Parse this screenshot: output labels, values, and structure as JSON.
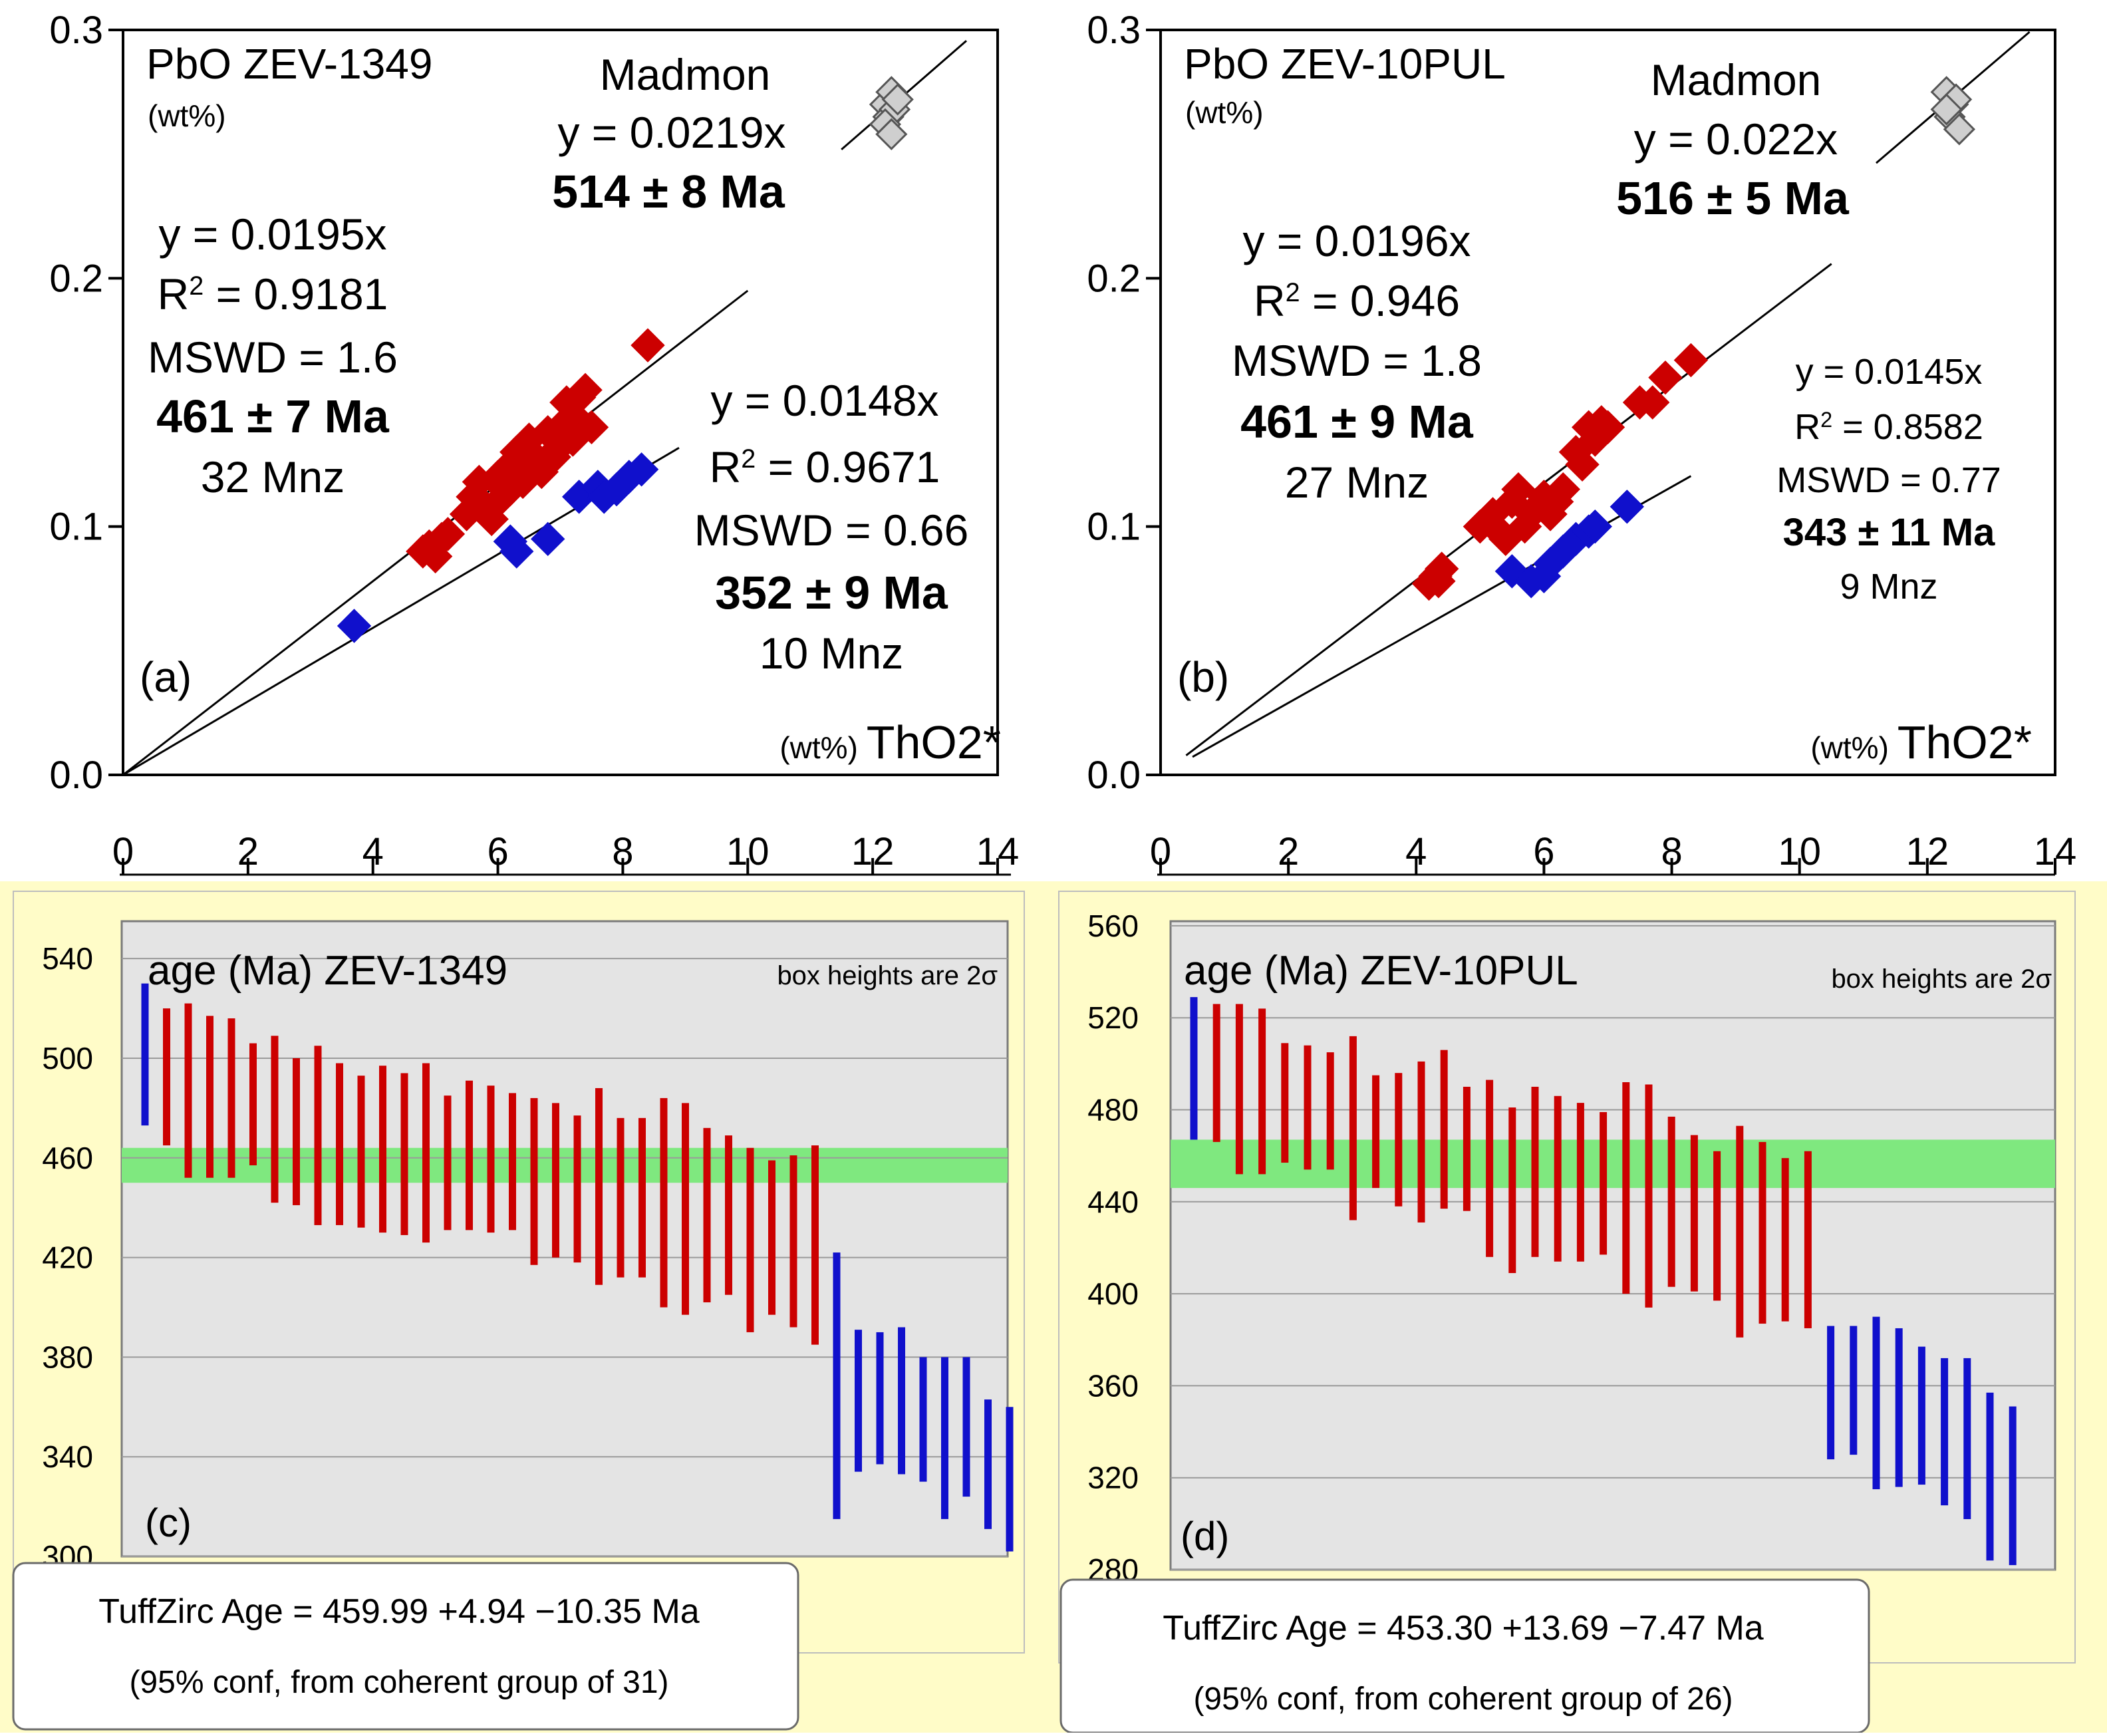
{
  "colors": {
    "red": "#cc0000",
    "blue": "#1010cc",
    "green": "#7fe87f",
    "grey_marker": "#cfcfcf",
    "yellow_bg": "#fffcc8",
    "panel_grey": "#e4e4e4",
    "grid": "#9a9a9a"
  },
  "chart_data": [
    {
      "id": "a",
      "type": "scatter",
      "panel_label": "(a)",
      "title": "PbO",
      "sample": "ZEV-1349",
      "ylabel_unit": "(wt%)",
      "xlabel_unit": "(wt%)",
      "xlabel": "ThO2*",
      "xlim": [
        0,
        14
      ],
      "ylim": [
        0,
        0.3
      ],
      "xticks": [
        "0",
        "2",
        "4",
        "6",
        "8",
        "10",
        "12",
        "14"
      ],
      "yticks": [
        "0.0",
        "0.1",
        "0.2",
        "0.3"
      ],
      "lines": [
        {
          "name": "madmon",
          "slope": 0.0219,
          "x": [
            11.5,
            13.5
          ]
        },
        {
          "name": "red",
          "slope": 0.0195,
          "x": [
            0,
            10
          ]
        },
        {
          "name": "blue",
          "slope": 0.0148,
          "x": [
            0,
            8.9
          ]
        }
      ],
      "series": [
        {
          "name": "Madmon",
          "color": "grey",
          "points": [
            [
              12.2,
              0.27
            ],
            [
              12.3,
              0.275
            ],
            [
              12.25,
              0.265
            ],
            [
              12.35,
              0.268
            ],
            [
              12.2,
              0.262
            ],
            [
              12.4,
              0.272
            ],
            [
              12.3,
              0.258
            ]
          ]
        },
        {
          "name": "red",
          "color": "red",
          "points": [
            [
              4.8,
              0.09
            ],
            [
              4.9,
              0.092
            ],
            [
              5.0,
              0.088
            ],
            [
              5.1,
              0.095
            ],
            [
              5.2,
              0.097
            ],
            [
              5.6,
              0.112
            ],
            [
              5.7,
              0.118
            ],
            [
              5.8,
              0.108
            ],
            [
              5.9,
              0.103
            ],
            [
              6.0,
              0.12
            ],
            [
              6.1,
              0.115
            ],
            [
              6.2,
              0.125
            ],
            [
              6.3,
              0.13
            ],
            [
              6.4,
              0.118
            ],
            [
              6.5,
              0.135
            ],
            [
              6.6,
              0.128
            ],
            [
              6.7,
              0.122
            ],
            [
              6.8,
              0.138
            ],
            [
              6.9,
              0.13
            ],
            [
              7.0,
              0.14
            ],
            [
              7.1,
              0.15
            ],
            [
              7.2,
              0.145
            ],
            [
              7.3,
              0.152
            ],
            [
              7.4,
              0.155
            ],
            [
              7.5,
              0.14
            ],
            [
              6.5,
              0.125
            ],
            [
              6.2,
              0.115
            ],
            [
              6.0,
              0.11
            ],
            [
              5.5,
              0.105
            ],
            [
              7.2,
              0.135
            ],
            [
              6.9,
              0.128
            ],
            [
              8.4,
              0.173
            ]
          ]
        },
        {
          "name": "blue",
          "color": "blue",
          "points": [
            [
              3.7,
              0.06
            ],
            [
              6.2,
              0.094
            ],
            [
              6.3,
              0.09
            ],
            [
              6.8,
              0.095
            ],
            [
              7.3,
              0.112
            ],
            [
              7.6,
              0.116
            ],
            [
              7.7,
              0.112
            ],
            [
              7.9,
              0.115
            ],
            [
              8.1,
              0.12
            ],
            [
              8.3,
              0.123
            ]
          ]
        }
      ],
      "annotations": {
        "madmon_name": "Madmon",
        "madmon_eq": "y = 0.0219x",
        "madmon_age": "514  ±  8 Ma",
        "red_eq": "y = 0.0195x",
        "red_r2_label": "R",
        "red_r2_value": " = 0.9181",
        "red_mswd": "MSWD = 1.6",
        "red_age": "461  ±  7 Ma",
        "red_n": "32 Mnz",
        "blue_eq": "y = 0.0148x",
        "blue_r2_label": "R",
        "blue_r2_value": " = 0.9671",
        "blue_mswd": "MSWD = 0.66",
        "blue_age": "352  ±  9 Ma",
        "blue_n": "10 Mnz"
      }
    },
    {
      "id": "b",
      "type": "scatter",
      "panel_label": "(b)",
      "title": "PbO",
      "sample": "ZEV-10PUL",
      "ylabel_unit": "(wt%)",
      "xlabel_unit": "(wt%)",
      "xlabel": "ThO2*",
      "xlim": [
        0,
        14
      ],
      "ylim": [
        0,
        0.3
      ],
      "xticks": [
        "0",
        "2",
        "4",
        "6",
        "8",
        "10",
        "12",
        "14"
      ],
      "yticks": [
        "0.0",
        "0.1",
        "0.2",
        "0.3"
      ],
      "lines": [
        {
          "name": "madmon",
          "slope": 0.022,
          "x": [
            11.2,
            13.6
          ]
        },
        {
          "name": "red",
          "slope": 0.0196,
          "x": [
            0.4,
            10.5
          ]
        },
        {
          "name": "blue",
          "slope": 0.0145,
          "x": [
            0.5,
            8.3
          ]
        }
      ],
      "series": [
        {
          "name": "Madmon",
          "color": "grey",
          "points": [
            [
              12.3,
              0.275
            ],
            [
              12.4,
              0.27
            ],
            [
              12.35,
              0.265
            ],
            [
              12.45,
              0.272
            ],
            [
              12.3,
              0.268
            ],
            [
              12.5,
              0.26
            ]
          ]
        },
        {
          "name": "red",
          "color": "red",
          "points": [
            [
              4.2,
              0.077
            ],
            [
              4.3,
              0.08
            ],
            [
              4.4,
              0.083
            ],
            [
              4.35,
              0.078
            ],
            [
              5.0,
              0.1
            ],
            [
              5.2,
              0.105
            ],
            [
              5.3,
              0.098
            ],
            [
              5.4,
              0.095
            ],
            [
              5.5,
              0.11
            ],
            [
              5.6,
              0.115
            ],
            [
              5.7,
              0.1
            ],
            [
              5.8,
              0.105
            ],
            [
              5.9,
              0.108
            ],
            [
              6.0,
              0.112
            ],
            [
              6.1,
              0.105
            ],
            [
              6.2,
              0.11
            ],
            [
              6.3,
              0.115
            ],
            [
              6.5,
              0.13
            ],
            [
              6.6,
              0.125
            ],
            [
              6.7,
              0.14
            ],
            [
              6.8,
              0.135
            ],
            [
              6.9,
              0.142
            ],
            [
              7.0,
              0.14
            ],
            [
              7.5,
              0.15
            ],
            [
              7.7,
              0.15
            ],
            [
              7.9,
              0.16
            ],
            [
              8.3,
              0.167
            ]
          ]
        },
        {
          "name": "blue",
          "color": "blue",
          "points": [
            [
              5.5,
              0.082
            ],
            [
              5.8,
              0.078
            ],
            [
              6.0,
              0.08
            ],
            [
              6.1,
              0.085
            ],
            [
              6.3,
              0.09
            ],
            [
              6.5,
              0.095
            ],
            [
              6.7,
              0.098
            ],
            [
              6.8,
              0.1
            ],
            [
              7.3,
              0.108
            ]
          ]
        }
      ],
      "annotations": {
        "madmon_name": "Madmon",
        "madmon_eq": "y = 0.022x",
        "madmon_age": "516  ±  5 Ma",
        "red_eq": "y = 0.0196x",
        "red_r2_label": "R",
        "red_r2_value": " = 0.946",
        "red_mswd": "MSWD = 1.8",
        "red_age": "461  ±  9 Ma",
        "red_n": "27 Mnz",
        "blue_eq": "y = 0.0145x",
        "blue_r2_label": "R",
        "blue_r2_value": " = 0.8582",
        "blue_mswd": "MSWD = 0.77",
        "blue_age": "343  ± 11 Ma",
        "blue_n": "9 Mnz"
      }
    },
    {
      "id": "c",
      "type": "bar",
      "subtype": "error-bar ranked ages",
      "panel_label": "(c)",
      "title": "age (Ma)",
      "sample": "ZEV-1349",
      "note": "box heights are 2σ",
      "ylim": [
        300,
        555
      ],
      "yticks": [
        "540",
        "500",
        "460",
        "420",
        "380",
        "340",
        "300"
      ],
      "band": [
        450,
        464
      ],
      "bars": [
        {
          "color": "blue",
          "low": 473,
          "high": 530
        },
        {
          "color": "red",
          "low": 465,
          "high": 520
        },
        {
          "color": "red",
          "low": 452,
          "high": 522
        },
        {
          "color": "red",
          "low": 452,
          "high": 517
        },
        {
          "color": "red",
          "low": 452,
          "high": 516
        },
        {
          "color": "red",
          "low": 457,
          "high": 506
        },
        {
          "color": "red",
          "low": 442,
          "high": 509
        },
        {
          "color": "red",
          "low": 441,
          "high": 500
        },
        {
          "color": "red",
          "low": 433,
          "high": 505
        },
        {
          "color": "red",
          "low": 433,
          "high": 498
        },
        {
          "color": "red",
          "low": 432,
          "high": 493
        },
        {
          "color": "red",
          "low": 430,
          "high": 497
        },
        {
          "color": "red",
          "low": 429,
          "high": 494
        },
        {
          "color": "red",
          "low": 426,
          "high": 498
        },
        {
          "color": "red",
          "low": 431,
          "high": 485
        },
        {
          "color": "red",
          "low": 431,
          "high": 491
        },
        {
          "color": "red",
          "low": 430,
          "high": 489
        },
        {
          "color": "red",
          "low": 431,
          "high": 486
        },
        {
          "color": "red",
          "low": 417,
          "high": 484
        },
        {
          "color": "red",
          "low": 420,
          "high": 482
        },
        {
          "color": "red",
          "low": 418,
          "high": 477
        },
        {
          "color": "red",
          "low": 409,
          "high": 488
        },
        {
          "color": "red",
          "low": 412,
          "high": 476
        },
        {
          "color": "red",
          "low": 412,
          "high": 476
        },
        {
          "color": "red",
          "low": 400,
          "high": 484
        },
        {
          "color": "red",
          "low": 397,
          "high": 482
        },
        {
          "color": "red",
          "low": 402,
          "high": 472
        },
        {
          "color": "red",
          "low": 405,
          "high": 469
        },
        {
          "color": "red",
          "low": 390,
          "high": 464
        },
        {
          "color": "red",
          "low": 397,
          "high": 459
        },
        {
          "color": "red",
          "low": 392,
          "high": 461
        },
        {
          "color": "red",
          "low": 385,
          "high": 465
        },
        {
          "color": "blue",
          "low": 315,
          "high": 422
        },
        {
          "color": "blue",
          "low": 334,
          "high": 391
        },
        {
          "color": "blue",
          "low": 337,
          "high": 390
        },
        {
          "color": "blue",
          "low": 333,
          "high": 392
        },
        {
          "color": "blue",
          "low": 330,
          "high": 380
        },
        {
          "color": "blue",
          "low": 315,
          "high": 380
        },
        {
          "color": "blue",
          "low": 324,
          "high": 380
        },
        {
          "color": "blue",
          "low": 311,
          "high": 363
        },
        {
          "color": "blue",
          "low": 302,
          "high": 360
        }
      ],
      "result_line1": "TuffZirc Age  = 459.99   +4.94  −10.35  Ma",
      "result_line2": "(95% conf, from coherent group of 31)"
    },
    {
      "id": "d",
      "type": "bar",
      "subtype": "error-bar ranked ages",
      "panel_label": "(d)",
      "title": "age (Ma)",
      "sample": "ZEV-10PUL",
      "note": "box heights are 2σ",
      "ylim": [
        280,
        562
      ],
      "yticks": [
        "560",
        "520",
        "480",
        "440",
        "400",
        "360",
        "320",
        "280"
      ],
      "band": [
        446,
        467
      ],
      "bars": [
        {
          "color": "blue",
          "low": 467,
          "high": 529
        },
        {
          "color": "red",
          "low": 466,
          "high": 526
        },
        {
          "color": "red",
          "low": 452,
          "high": 526
        },
        {
          "color": "red",
          "low": 452,
          "high": 524
        },
        {
          "color": "red",
          "low": 457,
          "high": 509
        },
        {
          "color": "red",
          "low": 454,
          "high": 508
        },
        {
          "color": "red",
          "low": 454,
          "high": 505
        },
        {
          "color": "red",
          "low": 432,
          "high": 512
        },
        {
          "color": "red",
          "low": 446,
          "high": 495
        },
        {
          "color": "red",
          "low": 438,
          "high": 496
        },
        {
          "color": "red",
          "low": 431,
          "high": 501
        },
        {
          "color": "red",
          "low": 437,
          "high": 506
        },
        {
          "color": "red",
          "low": 436,
          "high": 490
        },
        {
          "color": "red",
          "low": 416,
          "high": 493
        },
        {
          "color": "red",
          "low": 409,
          "high": 481
        },
        {
          "color": "red",
          "low": 416,
          "high": 490
        },
        {
          "color": "red",
          "low": 414,
          "high": 486
        },
        {
          "color": "red",
          "low": 414,
          "high": 483
        },
        {
          "color": "red",
          "low": 417,
          "high": 479
        },
        {
          "color": "red",
          "low": 400,
          "high": 492
        },
        {
          "color": "red",
          "low": 394,
          "high": 491
        },
        {
          "color": "red",
          "low": 403,
          "high": 477
        },
        {
          "color": "red",
          "low": 401,
          "high": 469
        },
        {
          "color": "red",
          "low": 397,
          "high": 462
        },
        {
          "color": "red",
          "low": 381,
          "high": 473
        },
        {
          "color": "red",
          "low": 387,
          "high": 466
        },
        {
          "color": "red",
          "low": 388,
          "high": 459
        },
        {
          "color": "red",
          "low": 385,
          "high": 462
        },
        {
          "color": "blue",
          "low": 328,
          "high": 386
        },
        {
          "color": "blue",
          "low": 330,
          "high": 386
        },
        {
          "color": "blue",
          "low": 315,
          "high": 390
        },
        {
          "color": "blue",
          "low": 316,
          "high": 385
        },
        {
          "color": "blue",
          "low": 317,
          "high": 377
        },
        {
          "color": "blue",
          "low": 308,
          "high": 372
        },
        {
          "color": "blue",
          "low": 302,
          "high": 372
        },
        {
          "color": "blue",
          "low": 284,
          "high": 357
        },
        {
          "color": "blue",
          "low": 282,
          "high": 351
        }
      ],
      "result_line1": "TuffZirc Age  = 453.30   +13.69  −7.47  Ma",
      "result_line2": "(95% conf, from coherent group of 26)"
    }
  ]
}
